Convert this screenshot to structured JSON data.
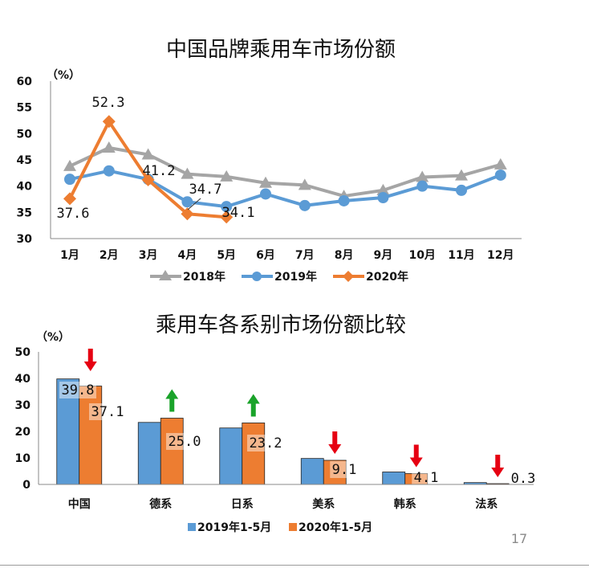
{
  "page_number": "17",
  "colors": {
    "s2018": "#a5a5a5",
    "s2019": "#5b9bd5",
    "s2020": "#ed7d31",
    "down_arrow": "#e60012",
    "up_arrow": "#1aa32a"
  },
  "chart_data": [
    {
      "type": "line",
      "title": "中国品牌乘用车市场份额",
      "ylabel": "（%）",
      "ylim": [
        30,
        60
      ],
      "yticks": [
        30,
        35,
        40,
        45,
        50,
        55,
        60
      ],
      "ytick_labels": [
        "30",
        "35",
        "40",
        "45",
        "50",
        "55",
        "60"
      ],
      "categories": [
        "1月",
        "2月",
        "3月",
        "4月",
        "5月",
        "6月",
        "7月",
        "8月",
        "9月",
        "10月",
        "11月",
        "12月"
      ],
      "legend_position": "bottom",
      "series": [
        {
          "name": "2018年",
          "marker": "triangle",
          "color": "#a5a5a5",
          "values": [
            43.8,
            47.3,
            46.0,
            42.3,
            41.8,
            40.6,
            40.2,
            38.1,
            39.2,
            41.7,
            42.0,
            44.1
          ]
        },
        {
          "name": "2019年",
          "marker": "circle",
          "color": "#5b9bd5",
          "values": [
            41.3,
            42.9,
            41.3,
            37.0,
            36.1,
            38.5,
            36.3,
            37.2,
            37.8,
            40.0,
            39.2,
            42.1
          ]
        },
        {
          "name": "2020年",
          "marker": "diamond",
          "color": "#ed7d31",
          "values": [
            37.6,
            52.3,
            41.2,
            34.7,
            34.1,
            null,
            null,
            null,
            null,
            null,
            null,
            null
          ]
        }
      ],
      "data_labels": [
        "52.3",
        "41.2",
        "34.7",
        "37.6",
        "34.1"
      ]
    },
    {
      "type": "bar",
      "title": "乘用车各系别市场份额比较",
      "ylabel": "（%）",
      "ylim": [
        0,
        50
      ],
      "yticks": [
        0,
        10,
        20,
        30,
        40,
        50
      ],
      "ytick_labels": [
        "0",
        "10",
        "20",
        "30",
        "40",
        "50"
      ],
      "categories": [
        "中国",
        "德系",
        "日系",
        "美系",
        "韩系",
        "法系"
      ],
      "legend_position": "bottom",
      "series": [
        {
          "name": "2019年1-5月",
          "color": "#5b9bd5",
          "values": [
            39.8,
            23.4,
            21.3,
            9.8,
            4.7,
            0.7
          ]
        },
        {
          "name": "2020年1-5月",
          "color": "#ed7d31",
          "values": [
            37.1,
            25.0,
            23.2,
            9.1,
            4.1,
            0.3
          ]
        }
      ],
      "data_labels": [
        "39.8",
        "37.1",
        "25.0",
        "23.2",
        "9.1",
        "4.1",
        "0.3"
      ],
      "trend": [
        "down",
        "up",
        "up",
        "down",
        "down",
        "down"
      ]
    }
  ]
}
